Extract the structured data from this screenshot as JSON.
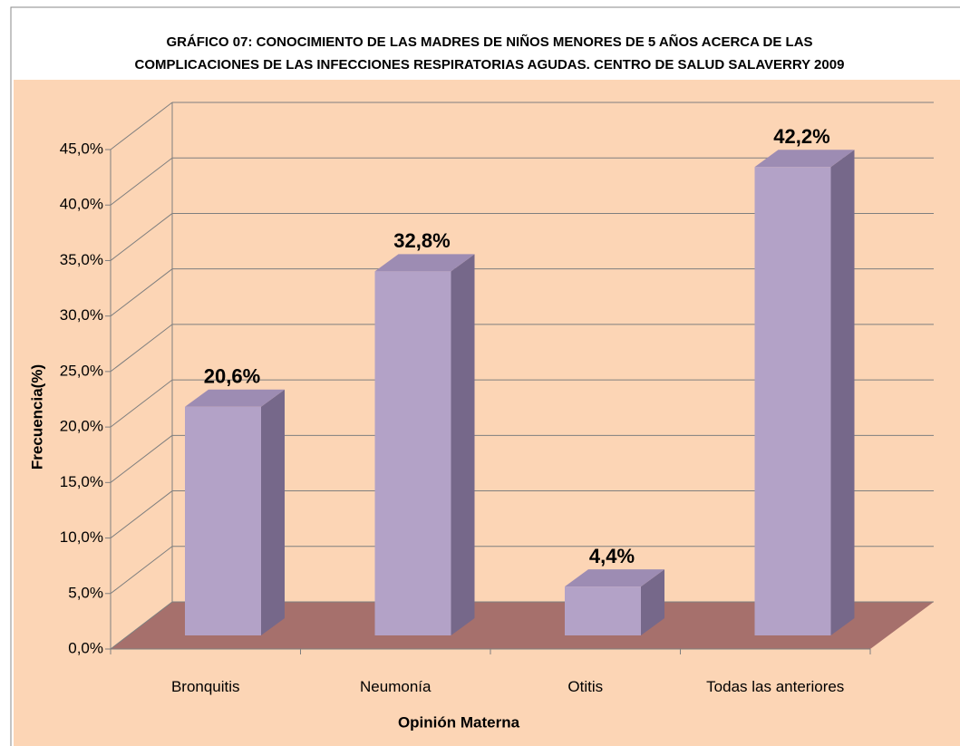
{
  "chart_data": {
    "type": "bar3d",
    "title": "GRÁFICO 07: CONOCIMIENTO DE LAS MADRES DE NIÑOS MENORES DE 5 AÑOS ACERCA DE LAS COMPLICACIONES DE LAS INFECCIONES RESPIRATORIAS AGUDAS. CENTRO DE SALUD SALAVERRY 2009",
    "x_label": "Opinión Materna",
    "y_label": "Frecuencia(%)",
    "categories": [
      "Bronquitis",
      "Neumonía",
      "Otitis",
      "Todas las anteriores"
    ],
    "values": [
      20.6,
      32.8,
      4.4,
      42.2
    ],
    "value_labels": [
      "20,6%",
      "32,8%",
      "4,4%",
      "42,2%"
    ],
    "color": "#b3a2c7",
    "ylim": [
      0,
      45
    ],
    "yticks": [
      {
        "value": 0,
        "label": "0,0%"
      },
      {
        "value": 5,
        "label": "5,0%"
      },
      {
        "value": 10,
        "label": "10,0%"
      },
      {
        "value": 15,
        "label": "15,0%"
      },
      {
        "value": 20,
        "label": "20,0%"
      },
      {
        "value": 25,
        "label": "25,0%"
      },
      {
        "value": 30,
        "label": "30,0%"
      },
      {
        "value": 35,
        "label": "35,0%"
      },
      {
        "value": 40,
        "label": "40,0%"
      },
      {
        "value": 45,
        "label": "45,0%"
      }
    ],
    "grid": true
  }
}
